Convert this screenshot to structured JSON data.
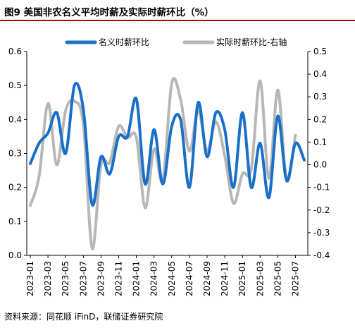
{
  "header": {
    "title": "图9  美国非农名义平均时薪及实际时薪环比（%）"
  },
  "footer": {
    "source": "资料来源：同花顺 iFinD，联储证券研究院"
  },
  "colors": {
    "series1": "#1a6fc9",
    "series2": "#b7b7b7",
    "axis": "#000000"
  },
  "chart_data": {
    "type": "line",
    "title": "美国非农名义平均时薪及实际时薪环比（%）",
    "x": [
      "2023-01",
      "2023-02",
      "2023-03",
      "2023-04",
      "2023-05",
      "2023-06",
      "2023-07",
      "2023-08",
      "2023-09",
      "2023-10",
      "2023-11",
      "2023-12",
      "2024-01",
      "2024-02",
      "2024-03",
      "2024-04",
      "2024-05",
      "2024-06",
      "2024-07",
      "2024-08",
      "2024-09",
      "2024-10",
      "2024-11",
      "2024-12",
      "2025-01",
      "2025-02",
      "2025-03",
      "2025-04",
      "2025-05",
      "2025-06",
      "2025-07",
      "2025-08"
    ],
    "x_tick_labels": [
      "2023-01",
      "2023-03",
      "2023-05",
      "2023-07",
      "2023-09",
      "2023-11",
      "2024-01",
      "2024-03",
      "2024-05",
      "2024-07",
      "2024-09",
      "2024-11",
      "2025-01",
      "2025-03",
      "2025-05",
      "2025-07"
    ],
    "y_left": {
      "min": 0.0,
      "max": 0.6,
      "ticks": [
        0.0,
        0.1,
        0.2,
        0.3,
        0.4,
        0.5,
        0.6
      ]
    },
    "y_right": {
      "min": -0.4,
      "max": 0.5,
      "ticks": [
        -0.4,
        -0.3,
        -0.2,
        -0.1,
        0.0,
        0.1,
        0.2,
        0.3,
        0.4,
        0.5
      ]
    },
    "legend_position": "top",
    "series": [
      {
        "name": "名义时薪环比",
        "axis": "left",
        "values": [
          0.27,
          0.33,
          0.36,
          0.42,
          0.3,
          0.5,
          0.43,
          0.15,
          0.29,
          0.24,
          0.35,
          0.35,
          0.46,
          0.21,
          0.37,
          0.21,
          0.38,
          0.4,
          0.2,
          0.45,
          0.29,
          0.42,
          0.37,
          0.2,
          0.42,
          0.2,
          0.33,
          0.17,
          0.41,
          0.22,
          0.33,
          0.28
        ]
      },
      {
        "name": "实际时薪环比-右轴",
        "axis": "right",
        "values": [
          -0.18,
          -0.05,
          0.27,
          0.0,
          0.24,
          0.28,
          0.18,
          -0.37,
          0.0,
          0.01,
          0.17,
          0.12,
          0.12,
          -0.19,
          0.07,
          -0.07,
          0.36,
          0.29,
          0.06,
          0.24,
          0.06,
          0.19,
          0.04,
          -0.17,
          -0.04,
          -0.02,
          0.37,
          -0.06,
          0.33,
          -0.07,
          0.13,
          null
        ]
      }
    ]
  }
}
